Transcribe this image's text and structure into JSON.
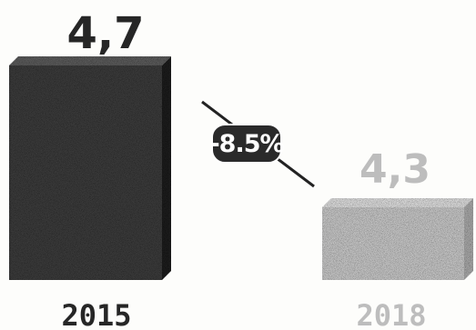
{
  "chart_data": {
    "type": "bar",
    "categories": [
      "2015",
      "2018"
    ],
    "values": [
      4.7,
      4.3
    ],
    "value_labels": [
      "4,7",
      "4,3"
    ],
    "change_label": "-8.5%",
    "title": "",
    "xlabel": "",
    "ylabel": "",
    "grid": false,
    "legend": "none",
    "colors": {
      "bar_2015_front": "#3a3a3a",
      "bar_2015_side": "#1c1c1c",
      "bar_2015_top": "#5a5a5a",
      "bar_2018_front": "#c4c4c4",
      "bar_2018_side": "#a6a6a6",
      "bar_2018_top": "#dadada",
      "label_2015": "#262626",
      "label_2018": "#bdbdbd",
      "badge_fill": "#2a2a2a",
      "badge_text": "#ffffff",
      "connector": "#222222"
    }
  }
}
